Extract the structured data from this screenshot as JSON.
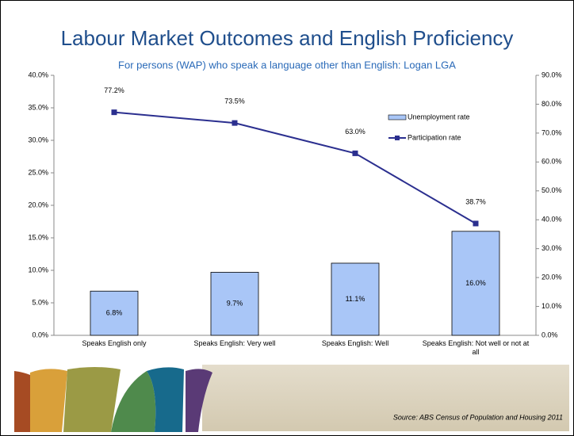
{
  "chart_data": {
    "type": "bar",
    "title": "Labour Market Outcomes and English Proficiency",
    "subtitle": "For persons (WAP) who speak a language other than English: Logan LGA",
    "source": "Source:  ABS Census of Population and Housing 2011",
    "categories": [
      "Speaks English only",
      "Speaks English: Very well",
      "Speaks English: Well",
      "Speaks English: Not well or not at all"
    ],
    "series": [
      {
        "name": "Unemployment rate",
        "type": "bar",
        "color": "#a9c6f7",
        "values": [
          6.8,
          9.7,
          11.1,
          16.0
        ],
        "value_labels": [
          "6.8%",
          "9.7%",
          "11.1%",
          "16.0%"
        ]
      },
      {
        "name": "Participation rate",
        "type": "line",
        "axis": "y2",
        "color": "#2b2f8f",
        "values": [
          77.2,
          73.5,
          63.0,
          38.7
        ],
        "value_labels": [
          "77.2%",
          "73.5%",
          "63.0%",
          "38.7%"
        ]
      }
    ],
    "ylim": [
      0,
      40
    ],
    "yticks": [
      {
        "value": 0,
        "label": "0.0%"
      },
      {
        "value": 5,
        "label": "5.0%"
      },
      {
        "value": 10,
        "label": "10.0%"
      },
      {
        "value": 15,
        "label": "15.0%"
      },
      {
        "value": 20,
        "label": "20.0%"
      },
      {
        "value": 25,
        "label": "25.0%"
      },
      {
        "value": 30,
        "label": "30.0%"
      },
      {
        "value": 35,
        "label": "35.0%"
      },
      {
        "value": 40,
        "label": "40.0%"
      }
    ],
    "y2lim": [
      0,
      90
    ],
    "y2ticks": [
      {
        "value": 0,
        "label": "0.0%"
      },
      {
        "value": 10,
        "label": "10.0%"
      },
      {
        "value": 20,
        "label": "20.0%"
      },
      {
        "value": 30,
        "label": "30.0%"
      },
      {
        "value": 40,
        "label": "40.0%"
      },
      {
        "value": 50,
        "label": "50.0%"
      },
      {
        "value": 60,
        "label": "60.0%"
      },
      {
        "value": 70,
        "label": "70.0%"
      },
      {
        "value": 80,
        "label": "80.0%"
      },
      {
        "value": 90,
        "label": "90.0%"
      }
    ],
    "grid": false,
    "legend": "upper right"
  }
}
